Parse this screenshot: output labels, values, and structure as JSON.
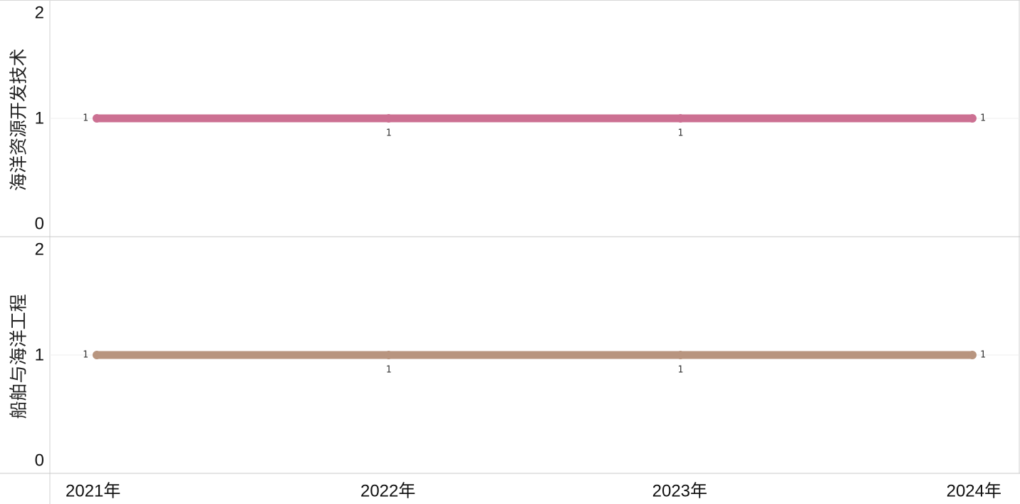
{
  "chart_data": {
    "type": "line",
    "x": [
      "2021年",
      "2022年",
      "2023年",
      "2024年"
    ],
    "y_ticks": [
      0,
      1,
      2
    ],
    "ylim": [
      0,
      2
    ],
    "grid": true,
    "legend": "none",
    "panels": [
      {
        "name": "海洋资源开发技术",
        "color": "#cc7092",
        "values": [
          1,
          1,
          1,
          1
        ],
        "labels": [
          "1",
          "1",
          "1",
          "1"
        ]
      },
      {
        "name": "船舶与海洋工程",
        "color": "#b8957f",
        "values": [
          1,
          1,
          1,
          1
        ],
        "labels": [
          "1",
          "1",
          "1",
          "1"
        ]
      }
    ]
  }
}
